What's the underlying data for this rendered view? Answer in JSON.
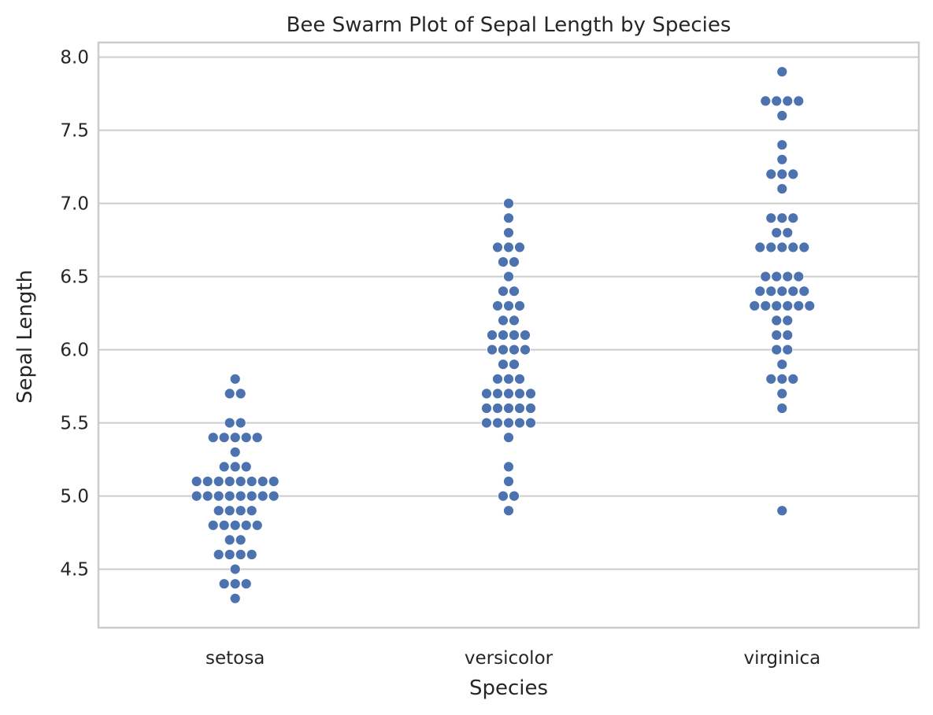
{
  "chart_data": {
    "type": "scatter",
    "subtype": "swarm",
    "title": "Bee Swarm Plot of Sepal Length by Species",
    "xlabel": "Species",
    "ylabel": "Sepal Length",
    "categories": [
      "setosa",
      "versicolor",
      "virginica"
    ],
    "ylim": [
      4.1,
      8.1
    ],
    "yticks": [
      "4.5",
      "5.0",
      "5.5",
      "6.0",
      "6.5",
      "7.0",
      "7.5",
      "8.0"
    ],
    "grid": "horizontal",
    "point_color": "#4c72b0",
    "series": [
      {
        "values": [
          5.1,
          4.9,
          4.7,
          4.6,
          5.0,
          5.4,
          4.6,
          5.0,
          4.4,
          4.9,
          5.4,
          4.8,
          4.8,
          4.3,
          5.8,
          5.7,
          5.4,
          5.1,
          5.7,
          5.1,
          5.4,
          5.1,
          4.6,
          5.1,
          4.8,
          5.0,
          5.0,
          5.2,
          5.2,
          4.7,
          4.8,
          5.4,
          5.2,
          5.5,
          4.9,
          5.0,
          5.5,
          4.9,
          4.4,
          5.1,
          5.0,
          4.5,
          4.4,
          5.0,
          5.1,
          4.8,
          5.1,
          4.6,
          5.3,
          5.0
        ]
      },
      {
        "values": [
          7.0,
          6.4,
          6.9,
          5.5,
          6.5,
          5.7,
          6.3,
          4.9,
          6.6,
          5.2,
          5.0,
          5.9,
          6.0,
          6.1,
          5.6,
          6.7,
          5.6,
          5.8,
          6.2,
          5.6,
          5.9,
          6.1,
          6.3,
          6.1,
          6.4,
          6.6,
          6.8,
          6.7,
          6.0,
          5.7,
          5.5,
          5.5,
          5.8,
          6.0,
          5.4,
          6.0,
          6.7,
          6.3,
          5.6,
          5.5,
          5.5,
          6.1,
          5.8,
          5.0,
          5.6,
          5.7,
          5.7,
          6.2,
          5.1,
          5.7
        ]
      },
      {
        "values": [
          6.3,
          5.8,
          7.1,
          6.3,
          6.5,
          7.6,
          4.9,
          7.3,
          6.7,
          7.2,
          6.5,
          6.4,
          6.8,
          5.7,
          5.8,
          6.4,
          6.5,
          7.7,
          7.7,
          6.0,
          6.9,
          5.6,
          7.7,
          6.3,
          6.7,
          7.2,
          6.2,
          6.1,
          6.4,
          7.2,
          7.4,
          7.9,
          6.4,
          6.3,
          6.1,
          7.7,
          6.3,
          6.4,
          6.0,
          6.9,
          6.7,
          6.9,
          5.8,
          6.8,
          6.7,
          6.7,
          6.3,
          6.5,
          6.2,
          5.9
        ]
      }
    ]
  }
}
